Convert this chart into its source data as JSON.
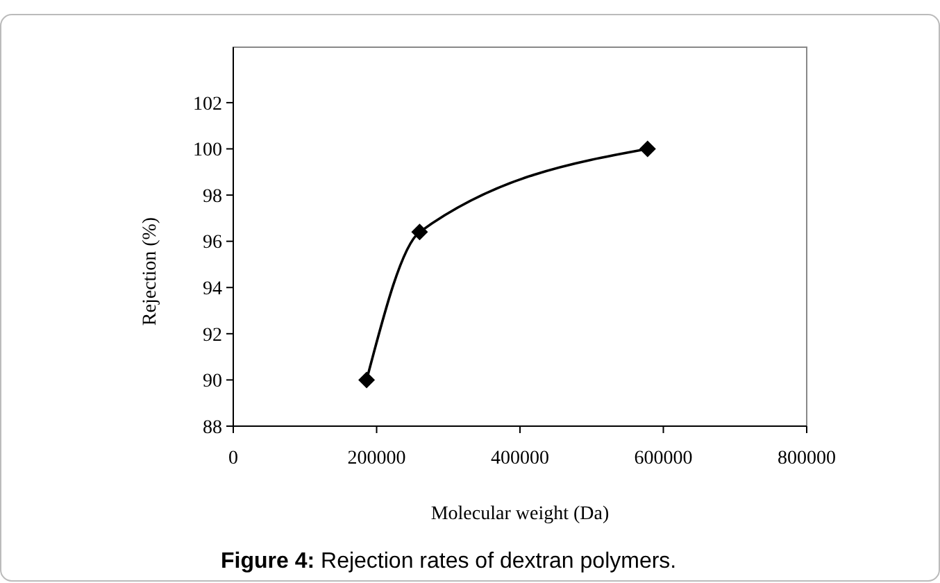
{
  "chart_data": {
    "type": "line",
    "title": "Figure 4: Rejection rates of dextran polymers.",
    "xlabel": "Molecular weight (Da)",
    "ylabel": "Rejection (%)",
    "x": [
      186000,
      260000,
      578000
    ],
    "series": [
      {
        "color": "#000000",
        "values": [
          90,
          96.4,
          100
        ]
      }
    ],
    "xlim": [
      0,
      800000
    ],
    "xticks": [
      0,
      200000,
      400000,
      600000,
      800000
    ],
    "ylim": [
      88,
      104.4
    ],
    "yticks": [
      88,
      90,
      92,
      94,
      96,
      98,
      100,
      102
    ],
    "marker": "diamond",
    "line_style": "solid"
  }
}
